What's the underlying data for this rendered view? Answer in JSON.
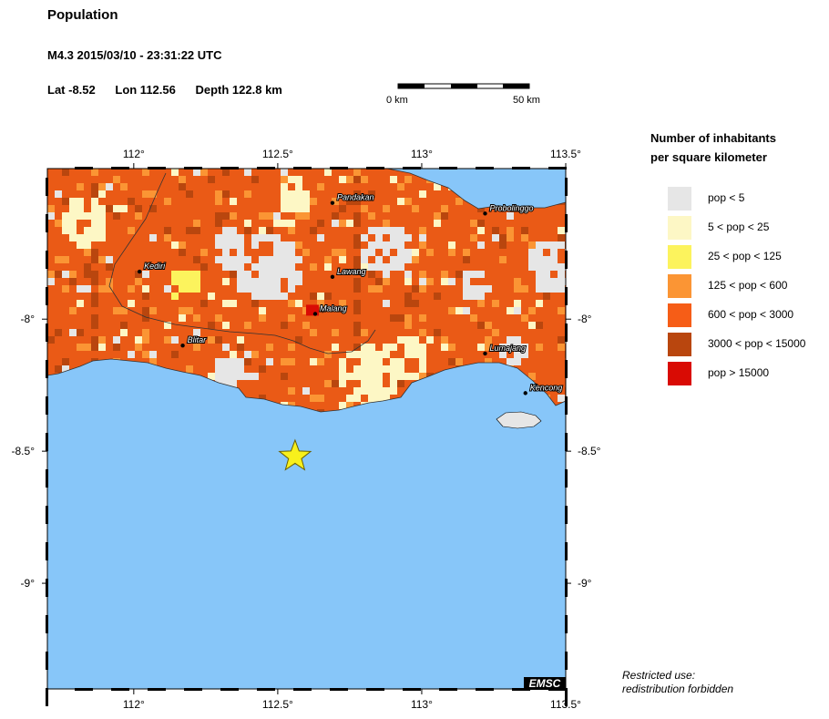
{
  "header": {
    "title": "Population",
    "event": "M4.3  2015/03/10 - 23:31:22 UTC",
    "lat": "Lat -8.52",
    "lon": "Lon 112.56",
    "depth": "Depth 122.8 km"
  },
  "scale_bar": {
    "start_label": "0 km",
    "end_label": "50 km"
  },
  "map": {
    "lon_range": [
      111.7,
      113.5
    ],
    "lat_range": [
      -9.4,
      -7.43
    ],
    "lon_ticks": [
      {
        "value": 112.0,
        "label": "112°"
      },
      {
        "value": 112.5,
        "label": "112.5°"
      },
      {
        "value": 113.0,
        "label": "113°"
      },
      {
        "value": 113.5,
        "label": "113.5°"
      }
    ],
    "lat_ticks": [
      {
        "value": -8.0,
        "label": "-8°"
      },
      {
        "value": -8.5,
        "label": "-8.5°"
      },
      {
        "value": -9.0,
        "label": "-9°"
      }
    ],
    "epicenter": {
      "lon": 112.56,
      "lat": -8.52
    },
    "cities": [
      {
        "name": "Kediri",
        "lon": 112.02,
        "lat": -7.82
      },
      {
        "name": "Pandakan",
        "lon": 112.69,
        "lat": -7.56
      },
      {
        "name": "Probolinggo",
        "lon": 113.22,
        "lat": -7.6
      },
      {
        "name": "Lawang",
        "lon": 112.69,
        "lat": -7.84
      },
      {
        "name": "Malang",
        "lon": 112.63,
        "lat": -7.98
      },
      {
        "name": "Blitar",
        "lon": 112.17,
        "lat": -8.1
      },
      {
        "name": "Lumajang",
        "lon": 113.22,
        "lat": -8.13
      },
      {
        "name": "Kencong",
        "lon": 113.36,
        "lat": -8.28
      }
    ],
    "colors": {
      "sea": "#87c6f9",
      "land_base": "#ea5a16"
    },
    "badge": "EMSC"
  },
  "legend": {
    "title_line1": "Number of inhabitants",
    "title_line2": "per square kilometer",
    "items": [
      {
        "label": "pop < 5",
        "color": "#e6e6e6"
      },
      {
        "label": "5 < pop < 25",
        "color": "#fdf7c5"
      },
      {
        "label": "25 < pop < 125",
        "color": "#fcf35d"
      },
      {
        "label": "125 < pop < 600",
        "color": "#fb9534"
      },
      {
        "label": "600 < pop < 3000",
        "color": "#f65d17"
      },
      {
        "label": "3000 < pop < 15000",
        "color": "#b9460e"
      },
      {
        "label": "pop > 15000",
        "color": "#d90b04"
      }
    ]
  },
  "footer": {
    "line1": "Restricted use:",
    "line2": "redistribution forbidden"
  }
}
